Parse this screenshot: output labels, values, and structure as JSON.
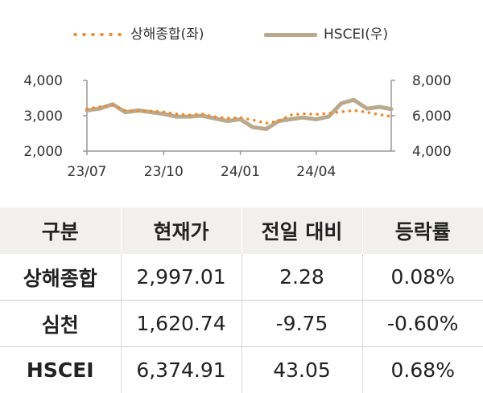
{
  "legend": {
    "left_label": "상해종합(좌)",
    "right_label": "HSCEI(우)"
  },
  "colors": {
    "shanghai": "#f08a2a",
    "hscei": "#b9aa8e",
    "axis": "#999999",
    "header_bg": "#f2f0ef"
  },
  "chart_data": {
    "type": "line",
    "x_ticks": [
      "23/07",
      "23/10",
      "24/01",
      "24/04"
    ],
    "x_range": [
      "2023-07-01",
      "2024-06-30"
    ],
    "y_left": {
      "ticks": [
        "2,000",
        "3,000",
        "4,000"
      ],
      "range": [
        2000,
        4000
      ]
    },
    "y_right": {
      "ticks": [
        "4,000",
        "6,000",
        "8,000"
      ],
      "range": [
        4000,
        8000
      ]
    },
    "series": [
      {
        "name": "상해종합(좌)",
        "axis": "left",
        "style": "dotted",
        "x": [
          "2023-07-01",
          "2023-07-16",
          "2023-08-01",
          "2023-08-16",
          "2023-09-01",
          "2023-09-16",
          "2023-10-01",
          "2023-10-16",
          "2023-11-01",
          "2023-11-16",
          "2023-12-01",
          "2023-12-16",
          "2024-01-01",
          "2024-01-16",
          "2024-02-01",
          "2024-02-16",
          "2024-03-01",
          "2024-03-16",
          "2024-04-01",
          "2024-04-16",
          "2024-05-01",
          "2024-05-16",
          "2024-06-01",
          "2024-06-16",
          "2024-06-30"
        ],
        "values": [
          3200,
          3250,
          3300,
          3150,
          3120,
          3130,
          3110,
          3050,
          3020,
          3050,
          2970,
          2930,
          2950,
          2880,
          2790,
          2850,
          3020,
          3060,
          3040,
          3070,
          3110,
          3150,
          3100,
          3030,
          2980
        ]
      },
      {
        "name": "HSCEI(우)",
        "axis": "right",
        "style": "solid",
        "x": [
          "2023-07-01",
          "2023-07-16",
          "2023-08-01",
          "2023-08-16",
          "2023-09-01",
          "2023-09-16",
          "2023-10-01",
          "2023-10-16",
          "2023-11-01",
          "2023-11-16",
          "2023-12-01",
          "2023-12-16",
          "2024-01-01",
          "2024-01-16",
          "2024-02-01",
          "2024-02-16",
          "2024-03-01",
          "2024-03-16",
          "2024-04-01",
          "2024-04-16",
          "2024-05-01",
          "2024-05-16",
          "2024-06-01",
          "2024-06-16",
          "2024-06-30"
        ],
        "values": [
          6300,
          6400,
          6650,
          6200,
          6300,
          6200,
          6100,
          5950,
          5950,
          6000,
          5850,
          5700,
          5800,
          5350,
          5250,
          5700,
          5800,
          5900,
          5800,
          5950,
          6700,
          6900,
          6400,
          6500,
          6374.91
        ]
      }
    ]
  },
  "table": {
    "headers": [
      "구분",
      "현재가",
      "전일 대비",
      "등락률"
    ],
    "rows": [
      [
        "상해종합",
        "2,997.01",
        "2.28",
        "0.08%"
      ],
      [
        "심천",
        "1,620.74",
        "-9.75",
        "-0.60%"
      ],
      [
        "HSCEI",
        "6,374.91",
        "43.05",
        "0.68%"
      ]
    ]
  }
}
